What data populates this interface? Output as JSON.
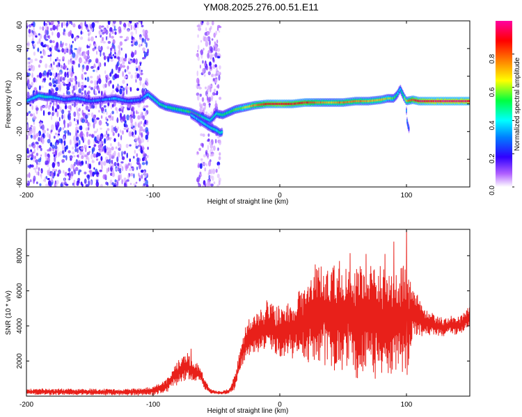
{
  "title": "YM08.2025.276.00.51.E11",
  "chart_data": [
    {
      "type": "heatmap",
      "id": "spectrogram",
      "xlabel": "Height of straight line (km)",
      "ylabel": "Frequency (Hz)",
      "xlim": [
        -200,
        150
      ],
      "ylim": [
        -60,
        60
      ],
      "xticks": [
        -200,
        -100,
        0,
        100
      ],
      "yticks": [
        -60,
        -40,
        -20,
        0,
        20,
        40,
        60
      ],
      "colorbar": {
        "label": "Normalized spectral amplitude",
        "range": [
          0.0,
          1.0
        ],
        "ticks": [
          0.0,
          0.2,
          0.4,
          0.6,
          0.8
        ],
        "tick_labels": [
          "0.0",
          "0.2",
          "0.4",
          "0.6",
          "0.8"
        ],
        "colormap": [
          "#ffffff",
          "#9b30ff",
          "#2000ff",
          "#00ffff",
          "#00ff00",
          "#ffff00",
          "#ff8000",
          "#ff0000",
          "#ff00ff"
        ]
      },
      "noise_regions": [
        {
          "x_from": -200,
          "x_to": -104,
          "f_from": -60,
          "f_to": 60,
          "density": "high"
        },
        {
          "x_from": -65,
          "x_to": -47,
          "f_from": -60,
          "f_to": 60,
          "density": "medium"
        }
      ],
      "ridge": {
        "x": [
          -200,
          -195,
          -190,
          -185,
          -180,
          -170,
          -160,
          -150,
          -140,
          -130,
          -120,
          -110,
          -104,
          -100,
          -95,
          -90,
          -85,
          -80,
          -75,
          -70,
          -65,
          -60,
          -55,
          -50,
          -45,
          -40,
          -35,
          -30,
          -25,
          -20,
          -10,
          0,
          10,
          20,
          30,
          40,
          50,
          60,
          70,
          80,
          85,
          90,
          93,
          95,
          98,
          100,
          105,
          110,
          120,
          130,
          140,
          150
        ],
        "f": [
          2,
          4,
          6,
          5,
          5,
          3,
          4,
          2,
          3,
          4,
          2,
          3,
          7,
          4,
          0,
          -2,
          -3,
          -4,
          -5,
          -6,
          -8,
          -10,
          -12,
          -7,
          -8,
          -6,
          -4,
          -3,
          -2,
          -1,
          0,
          0,
          0,
          1,
          1,
          1,
          1,
          2,
          2,
          3,
          4,
          4,
          7,
          11,
          5,
          2,
          3,
          2,
          2,
          2,
          2,
          2
        ],
        "amplitude": [
          0.35,
          0.4,
          0.45,
          0.45,
          0.4,
          0.3,
          0.35,
          0.3,
          0.3,
          0.35,
          0.3,
          0.3,
          0.4,
          0.45,
          0.45,
          0.45,
          0.5,
          0.5,
          0.5,
          0.5,
          0.5,
          0.45,
          0.4,
          0.45,
          0.5,
          0.5,
          0.55,
          0.6,
          0.65,
          0.75,
          0.85,
          0.9,
          0.85,
          0.85,
          0.75,
          0.7,
          0.75,
          0.75,
          0.7,
          0.7,
          0.6,
          0.55,
          0.45,
          0.4,
          0.55,
          0.7,
          0.85,
          0.9,
          0.95,
          0.95,
          0.95,
          0.95
        ]
      },
      "branch": {
        "x": [
          -70,
          -60,
          -55,
          -50,
          -47,
          -45
        ],
        "f": [
          -8,
          -14,
          -17,
          -19,
          -21,
          -20
        ],
        "amplitude": [
          0.35,
          0.4,
          0.4,
          0.45,
          0.45,
          0.4
        ]
      },
      "spur": {
        "x": [
          100,
          100,
          101,
          102
        ],
        "f": [
          -5,
          -10,
          -15,
          -18
        ],
        "amplitude": [
          0.35,
          0.4,
          0.35,
          0.3
        ]
      }
    },
    {
      "type": "line",
      "id": "snr",
      "xlabel": "Height of straight line (km)",
      "ylabel": "SNR (10 * v/v)",
      "xlim": [
        -200,
        150
      ],
      "ylim": [
        0,
        9500
      ],
      "xticks": [
        -200,
        -100,
        0,
        100
      ],
      "yticks": [
        2000,
        4000,
        6000,
        8000
      ],
      "color": "#e8201a",
      "series": [
        {
          "name": "SNR",
          "envelope": {
            "x": [
              -200,
              -160,
              -125,
              -110,
              -100,
              -90,
              -85,
              -80,
              -75,
              -72,
              -70,
              -65,
              -62,
              -60,
              -55,
              -50,
              -45,
              -40,
              -38,
              -35,
              -32,
              -30,
              -25,
              -20,
              -15,
              -10,
              -5,
              0,
              5,
              10,
              15,
              20,
              25,
              30,
              35,
              40,
              45,
              50,
              55,
              60,
              65,
              70,
              75,
              80,
              85,
              90,
              95,
              98,
              100,
              103,
              105,
              110,
              115,
              120,
              125,
              130,
              135,
              140,
              145,
              150
            ],
            "y": [
              250,
              250,
              230,
              260,
              300,
              550,
              1000,
              1400,
              1600,
              1700,
              1500,
              1300,
              1200,
              700,
              300,
              200,
              200,
              300,
              500,
              900,
              1800,
              2600,
              3200,
              3600,
              3700,
              4000,
              3800,
              3500,
              3900,
              3700,
              4200,
              4000,
              4500,
              4600,
              4700,
              4300,
              4800,
              4200,
              5000,
              4000,
              4500,
              4800,
              4200,
              4600,
              4000,
              4200,
              4500,
              4600,
              3600,
              4600,
              5000,
              4500,
              4200,
              4100,
              4000,
              3900,
              4100,
              4000,
              4200,
              4500
            ],
            "spread": [
              180,
              180,
              180,
              200,
              250,
              350,
              500,
              650,
              700,
              750,
              600,
              500,
              500,
              300,
              150,
              100,
              100,
              150,
              250,
              450,
              700,
              900,
              1000,
              1100,
              1200,
              1400,
              1500,
              1500,
              1600,
              1700,
              1900,
              2100,
              2400,
              2600,
              2700,
              2800,
              3000,
              3000,
              3100,
              3200,
              3100,
              3000,
              3000,
              3000,
              2900,
              2800,
              2700,
              3000,
              3000,
              2200,
              1500,
              1000,
              700,
              600,
              600,
              550,
              550,
              550,
              600,
              650
            ]
          },
          "notable_peaks": [
            {
              "x": 100,
              "y": 9500
            },
            {
              "x": 90,
              "y": 8800
            },
            {
              "x": 83,
              "y": 8100
            },
            {
              "x": 68,
              "y": 8100
            },
            {
              "x": 47,
              "y": 7700
            },
            {
              "x": 28,
              "y": 7500
            },
            {
              "x": -70,
              "y": 2700
            }
          ]
        }
      ]
    }
  ]
}
